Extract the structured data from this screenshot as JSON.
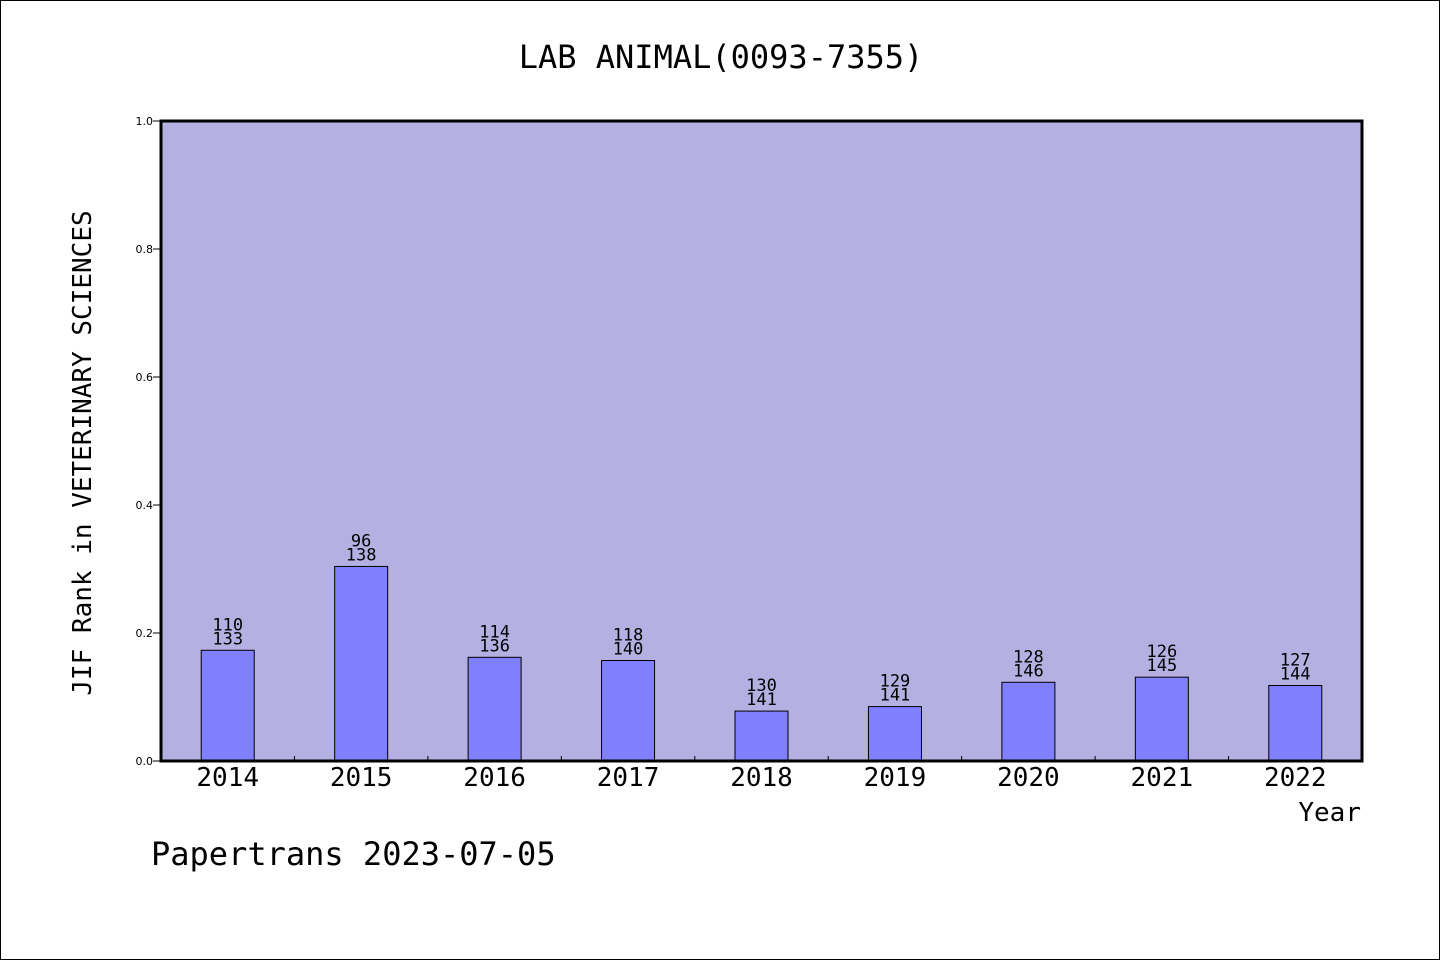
{
  "chart_data": {
    "type": "bar",
    "title": "LAB ANIMAL(0093-7355)",
    "xlabel": "Year",
    "ylabel": "JIF Rank in VETERINARY SCIENCES",
    "categories": [
      "2014",
      "2015",
      "2016",
      "2017",
      "2018",
      "2019",
      "2020",
      "2021",
      "2022"
    ],
    "values": [
      0.173,
      0.304,
      0.162,
      0.157,
      0.078,
      0.085,
      0.123,
      0.131,
      0.118
    ],
    "rank": [
      "110",
      "96",
      "114",
      "118",
      "130",
      "129",
      "128",
      "126",
      "127"
    ],
    "total": [
      "133",
      "138",
      "136",
      "140",
      "141",
      "141",
      "146",
      "145",
      "144"
    ],
    "ylim": [
      0,
      1.0
    ],
    "yticks": [
      "0.0",
      "0.2",
      "0.4",
      "0.6",
      "0.8",
      "1.0"
    ],
    "grid": false,
    "legend": "none",
    "colors": {
      "plot_bg": "#b5b0e2",
      "bar": "#8080ff",
      "axis": "#000000"
    }
  },
  "footer": {
    "watermark": "Papertrans 2023-07-05"
  }
}
